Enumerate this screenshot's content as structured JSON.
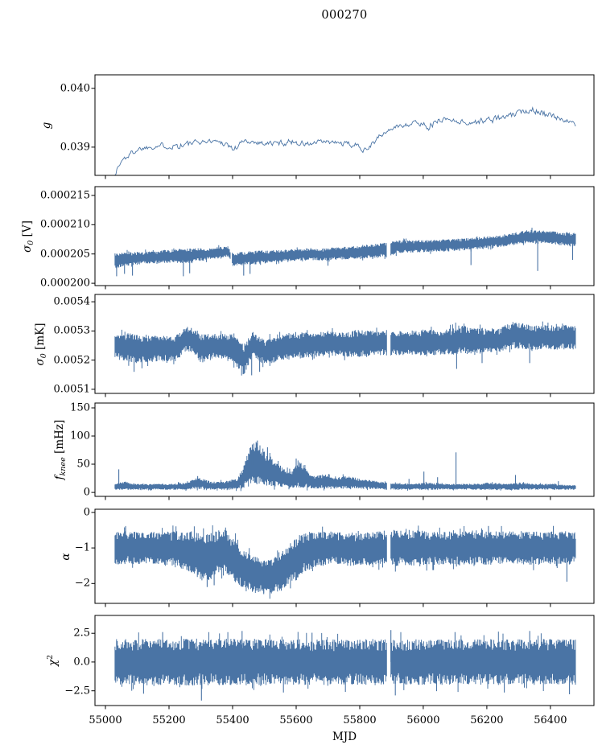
{
  "figure": {
    "background": "#ffffff",
    "line_color": "#4a74a5",
    "frame_color": "#000000",
    "text_color": "#000000"
  },
  "chart_data": {
    "type": "line",
    "title": "000270",
    "xlabel": "MJD",
    "x_range": [
      54967,
      56537
    ],
    "xticks": [
      55000,
      55200,
      55400,
      55600,
      55800,
      56000,
      56200,
      56400
    ],
    "xtick_labels": [
      "55000",
      "55200",
      "55400",
      "55600",
      "55800",
      "56000",
      "56200",
      "56400"
    ],
    "grid": false,
    "legend": "none",
    "panels": [
      {
        "name": "g",
        "ylabel": {
          "base": "g",
          "sub": "",
          "sup": "",
          "unit": ""
        },
        "ylim": [
          0.03852,
          0.04023
        ],
        "yticks": [
          {
            "v": 0.039,
            "label": "0.039"
          },
          {
            "v": 0.04,
            "label": "0.040"
          }
        ],
        "style": "line",
        "envelope": {
          "x": [
            55030,
            55050,
            55075,
            55100,
            55140,
            55180,
            55220,
            55260,
            55300,
            55340,
            55380,
            55400,
            55430,
            55470,
            55510,
            55550,
            55590,
            55630,
            55680,
            55730,
            55780,
            55820,
            55860,
            55900,
            55940,
            55980,
            56020,
            56060,
            56100,
            56140,
            56180,
            56220,
            56260,
            56300,
            56340,
            56370,
            56400,
            56440,
            56480
          ],
          "mean": [
            0.03858,
            0.03878,
            0.03888,
            0.03897,
            0.03901,
            0.03903,
            0.03903,
            0.03905,
            0.03909,
            0.03911,
            0.03906,
            0.03895,
            0.0391,
            0.03909,
            0.03906,
            0.03907,
            0.0391,
            0.03904,
            0.03909,
            0.03907,
            0.03903,
            0.03898,
            0.03918,
            0.03932,
            0.03939,
            0.03941,
            0.03936,
            0.03949,
            0.03945,
            0.03941,
            0.03944,
            0.03948,
            0.03951,
            0.03958,
            0.03966,
            0.0396,
            0.03951,
            0.03948,
            0.03936
          ],
          "spread": [
            0.0001,
            0.00013,
            0.0001,
            8e-05,
            8e-05,
            9e-05,
            0.00013,
            0.00012,
            7e-05,
            6e-05,
            0.00011,
            0.00013,
            7e-05,
            7e-05,
            9e-05,
            0.0001,
            0.0001,
            0.00011,
            8e-05,
            7e-05,
            0.0001,
            0.00013,
            8e-05,
            7e-05,
            8e-05,
            9e-05,
            0.00013,
            9e-05,
            7e-05,
            9e-05,
            0.0001,
            0.00012,
            9e-05,
            9e-05,
            0.00011,
            0.00014,
            0.00011,
            8e-05,
            7e-05
          ]
        },
        "spikes": [],
        "gaps": []
      },
      {
        "name": "sigma0_V",
        "ylabel": {
          "base": "σ",
          "sub": "0",
          "sup": "",
          "unit": " [V]"
        },
        "ylim": [
          0.0001996,
          0.0002165
        ],
        "yticks": [
          {
            "v": 0.0002,
            "label": "0.000200"
          },
          {
            "v": 0.000205,
            "label": "0.000205"
          },
          {
            "v": 0.00021,
            "label": "0.000210"
          },
          {
            "v": 0.000215,
            "label": "0.000215"
          }
        ],
        "style": "band",
        "envelope": {
          "x": [
            55030,
            55080,
            55140,
            55200,
            55260,
            55320,
            55385,
            55400,
            55450,
            55500,
            55560,
            55620,
            55680,
            55740,
            55800,
            55860,
            55895,
            55915,
            55970,
            56030,
            56090,
            56150,
            56210,
            56270,
            56330,
            56370,
            56420,
            56480
          ],
          "mean": [
            0.0002038,
            0.0002042,
            0.0002044,
            0.0002046,
            0.0002047,
            0.000205,
            0.0002054,
            0.0002041,
            0.0002043,
            0.0002045,
            0.0002047,
            0.0002049,
            0.0002049,
            0.0002051,
            0.0002053,
            0.0002056,
            0.0002058,
            0.0002062,
            0.0002063,
            0.0002064,
            0.0002065,
            0.0002067,
            0.000207,
            0.0002074,
            0.000208,
            0.000208,
            0.0002077,
            0.0002074
          ],
          "spread": [
            1.3e-06,
            1.1e-06,
            1e-06,
            1.1e-06,
            1.2e-06,
            1e-06,
            9e-07,
            1.1e-06,
            1.1e-06,
            1.1e-06,
            1e-06,
            1e-06,
            1e-06,
            1e-06,
            1.1e-06,
            1.2e-06,
            1.2e-06,
            1.1e-06,
            1e-06,
            1e-06,
            1e-06,
            1e-06,
            1e-06,
            1e-06,
            1.1e-06,
            1e-06,
            1.1e-06,
            1.2e-06
          ]
        },
        "spikes": [
          [
            55035,
            0.0002012
          ],
          [
            55060,
            0.0002016
          ],
          [
            55085,
            0.0002013
          ],
          [
            55245,
            0.0002012
          ],
          [
            55265,
            0.0002017
          ],
          [
            55435,
            0.0002013
          ],
          [
            55455,
            0.0002016
          ],
          [
            55700,
            0.000203
          ],
          [
            56150,
            0.0002031
          ],
          [
            56360,
            0.0002021
          ],
          [
            56470,
            0.000204
          ]
        ],
        "gaps": [
          [
            55393,
            55399
          ],
          [
            55886,
            55898
          ]
        ]
      },
      {
        "name": "sigma0_mK",
        "ylabel": {
          "base": "σ",
          "sub": "0",
          "sup": "",
          "unit": " [mK]"
        },
        "ylim": [
          0.005086,
          0.005425
        ],
        "yticks": [
          {
            "v": 0.0051,
            "label": "0.0051"
          },
          {
            "v": 0.0052,
            "label": "0.0052"
          },
          {
            "v": 0.0053,
            "label": "0.0053"
          },
          {
            "v": 0.0054,
            "label": "0.0054"
          }
        ],
        "style": "band",
        "envelope": {
          "x": [
            55030,
            55080,
            55120,
            55170,
            55220,
            55255,
            55275,
            55300,
            55350,
            55400,
            55435,
            55465,
            55500,
            55550,
            55600,
            55650,
            55700,
            55750,
            55800,
            55850,
            55900,
            55950,
            56000,
            56060,
            56120,
            56180,
            56240,
            56290,
            56320,
            56360,
            56420,
            56480
          ],
          "mean": [
            0.00525,
            0.00524,
            0.005238,
            0.00524,
            0.00524,
            0.005272,
            0.005268,
            0.00524,
            0.005248,
            0.005242,
            0.0052,
            0.005258,
            0.005225,
            0.005242,
            0.00525,
            0.00525,
            0.005258,
            0.005252,
            0.005258,
            0.005258,
            0.005258,
            0.00526,
            0.005258,
            0.00526,
            0.005268,
            0.005266,
            0.005268,
            0.005288,
            0.00528,
            0.005278,
            0.005278,
            0.00528
          ],
          "spread": [
            4.2e-05,
            5e-05,
            4.4e-05,
            4.2e-05,
            4.2e-05,
            4e-05,
            4.2e-05,
            4.8e-05,
            4e-05,
            4.6e-05,
            5e-05,
            4e-05,
            4.2e-05,
            4.2e-05,
            4.6e-05,
            4e-05,
            4e-05,
            4e-05,
            4.6e-05,
            4e-05,
            4e-05,
            4e-05,
            4.6e-05,
            4e-05,
            4.8e-05,
            4e-05,
            4e-05,
            4.6e-05,
            4.2e-05,
            4e-05,
            4e-05,
            4e-05
          ]
        },
        "spikes": [
          [
            55090,
            0.00516
          ],
          [
            55115,
            0.005172
          ],
          [
            55460,
            0.005148
          ],
          [
            55485,
            0.00516
          ],
          [
            55270,
            0.00531
          ],
          [
            56105,
            0.00517
          ],
          [
            56115,
            0.005308
          ],
          [
            56185,
            0.00519
          ],
          [
            56310,
            0.005318
          ],
          [
            56335,
            0.00519
          ]
        ],
        "gaps": [
          [
            55886,
            55898
          ]
        ]
      },
      {
        "name": "f_knee",
        "ylabel": {
          "base": "f",
          "sub": "knee",
          "sup": "",
          "unit": " [mHz]"
        },
        "ylim": [
          -7,
          158.5
        ],
        "yticks": [
          {
            "v": 0,
            "label": "0"
          },
          {
            "v": 50,
            "label": "50"
          },
          {
            "v": 100,
            "label": "100"
          },
          {
            "v": 150,
            "label": "150"
          }
        ],
        "style": "band",
        "envelope": {
          "x": [
            55030,
            55060,
            55100,
            55150,
            55200,
            55250,
            55285,
            55310,
            55340,
            55380,
            55415,
            55435,
            55455,
            55475,
            55495,
            55515,
            55540,
            55565,
            55585,
            55605,
            55625,
            55645,
            55665,
            55690,
            55720,
            55750,
            55780,
            55810,
            55850,
            55890,
            55915,
            55960,
            56010,
            56060,
            56110,
            56160,
            56210,
            56260,
            56310,
            56360,
            56410,
            56450,
            56480
          ],
          "mean": [
            10,
            12,
            10,
            10,
            10,
            11,
            16,
            15,
            11,
            13,
            15,
            28,
            45,
            52,
            45,
            38,
            31,
            25,
            22,
            32,
            28,
            20,
            18,
            20,
            16,
            18,
            17,
            15,
            13,
            11,
            11,
            10,
            11,
            10,
            10,
            10,
            11,
            10,
            11,
            10,
            10,
            9,
            9
          ],
          "spread": [
            5,
            7,
            5,
            5,
            5,
            6,
            10,
            9,
            6,
            8,
            9,
            20,
            33,
            38,
            32,
            27,
            21,
            16,
            14,
            24,
            20,
            12,
            11,
            13,
            9,
            11,
            10,
            8,
            7,
            6,
            6,
            5,
            6,
            5,
            5,
            5,
            6,
            5,
            6,
            5,
            5,
            4,
            4
          ]
        },
        "spikes": [
          [
            55042,
            41
          ],
          [
            55290,
            29
          ],
          [
            55462,
            85
          ],
          [
            55478,
            92
          ],
          [
            55510,
            80
          ],
          [
            55600,
            60
          ],
          [
            55955,
            24
          ],
          [
            56002,
            37
          ],
          [
            56045,
            27
          ],
          [
            56103,
            71
          ],
          [
            56290,
            31
          ],
          [
            56425,
            20
          ]
        ],
        "gaps": [
          [
            55886,
            55898
          ]
        ]
      },
      {
        "name": "alpha",
        "ylabel": {
          "base": "α",
          "sub": "",
          "sup": "",
          "unit": ""
        },
        "ylim": [
          -2.56,
          0.09
        ],
        "yticks": [
          {
            "v": -2,
            "label": "−2"
          },
          {
            "v": -1,
            "label": "−1"
          },
          {
            "v": 0,
            "label": "0"
          }
        ],
        "style": "band",
        "envelope": {
          "x": [
            55030,
            55080,
            55130,
            55180,
            55230,
            55270,
            55305,
            55330,
            55355,
            55375,
            55400,
            55425,
            55455,
            55485,
            55515,
            55545,
            55575,
            55605,
            55630,
            55660,
            55700,
            55750,
            55800,
            55850,
            55893,
            55912,
            55960,
            56020,
            56080,
            56140,
            56200,
            56260,
            56320,
            56380,
            56440,
            56480
          ],
          "mean": [
            -1.0,
            -1.0,
            -1.0,
            -1.02,
            -1.05,
            -1.1,
            -1.28,
            -1.25,
            -1.1,
            -1.05,
            -1.3,
            -1.52,
            -1.7,
            -1.76,
            -1.8,
            -1.72,
            -1.5,
            -1.28,
            -1.1,
            -1.05,
            -1.0,
            -1.04,
            -1.05,
            -1.0,
            -1.0,
            -1.0,
            -1.0,
            -1.0,
            -1.0,
            -1.0,
            -1.0,
            -1.0,
            -1.0,
            -1.0,
            -1.0,
            -1.0
          ],
          "spread": [
            0.45,
            0.45,
            0.43,
            0.45,
            0.5,
            0.58,
            0.65,
            0.62,
            0.58,
            0.55,
            0.6,
            0.55,
            0.5,
            0.48,
            0.45,
            0.5,
            0.57,
            0.6,
            0.55,
            0.5,
            0.45,
            0.45,
            0.45,
            0.45,
            0.45,
            0.5,
            0.48,
            0.45,
            0.45,
            0.45,
            0.45,
            0.45,
            0.45,
            0.45,
            0.45,
            0.45
          ]
        },
        "spikes": [
          [
            55320,
            -2.1
          ],
          [
            55342,
            -2.05
          ],
          [
            55498,
            -2.3
          ],
          [
            55522,
            -2.28
          ],
          [
            55060,
            -0.42
          ],
          [
            56205,
            -0.38
          ],
          [
            56452,
            -1.95
          ]
        ],
        "gaps": [
          [
            55886,
            55898
          ]
        ]
      },
      {
        "name": "chi2",
        "ylabel": {
          "base": "χ",
          "sub": "",
          "sup": "2",
          "unit": ""
        },
        "ylim": [
          -3.78,
          4.05
        ],
        "yticks": [
          {
            "v": -2.5,
            "label": "−2.5"
          },
          {
            "v": 0,
            "label": "0.0"
          },
          {
            "v": 2.5,
            "label": "2.5"
          }
        ],
        "style": "band",
        "envelope": {
          "x": [
            55030,
            55300,
            55600,
            55900,
            56200,
            56480
          ],
          "mean": [
            0,
            0,
            0,
            0,
            0,
            0
          ],
          "spread": [
            1.9,
            1.95,
            1.9,
            1.9,
            1.9,
            1.9
          ]
        },
        "spikes": [
          [
            55120,
            -2.75
          ],
          [
            55180,
            2.6
          ],
          [
            55302,
            -3.35
          ],
          [
            55430,
            2.7
          ],
          [
            55560,
            -2.65
          ],
          [
            55650,
            2.55
          ],
          [
            55755,
            -2.6
          ],
          [
            55898,
            2.78
          ],
          [
            55912,
            -2.9
          ],
          [
            56100,
            2.6
          ],
          [
            56255,
            -2.65
          ],
          [
            56335,
            2.7
          ],
          [
            56460,
            -2.8
          ]
        ],
        "gaps": [
          [
            55886,
            55898
          ]
        ]
      }
    ]
  }
}
